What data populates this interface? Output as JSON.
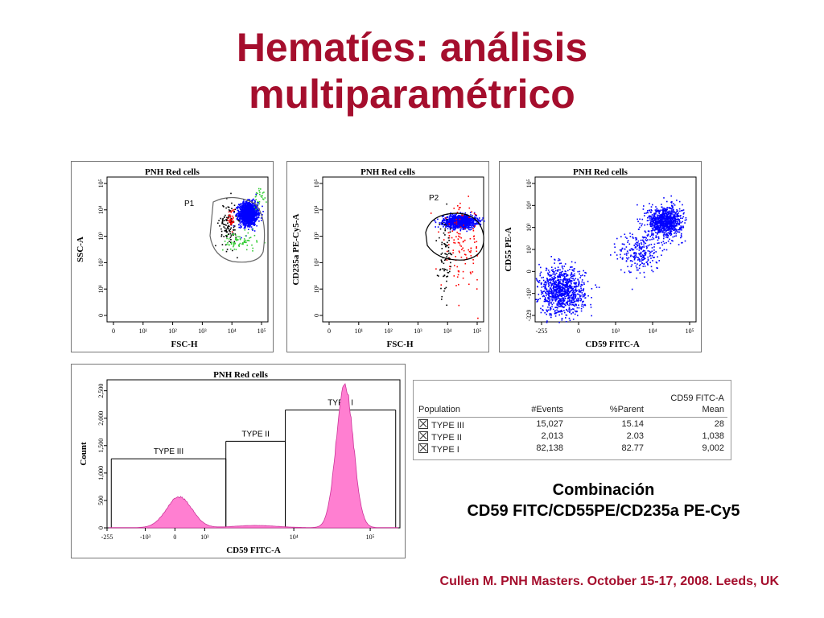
{
  "slide": {
    "title_line1": "Hematíes: análisis",
    "title_line2": "multiparamétrico",
    "combination_line1": "Combinación",
    "combination_line2": "CD59 FITC/CD55PE/CD235a PE-Cy5",
    "citation": "Cullen M.  PNH Masters. October 15-17, 2008. Leeds, UK"
  },
  "colors": {
    "title": "#a50e2d",
    "gated_events": "#0000ff",
    "histogram_fill": "#ff7fd1",
    "ungated_red": "#ff0000",
    "ungated_green": "#33cc33",
    "ungated_black": "#000000"
  },
  "stats_table": {
    "header_group": "CD59 FITC-A",
    "columns": [
      "Population",
      "#Events",
      "%Parent",
      "Mean"
    ],
    "rows": [
      {
        "population": "TYPE III",
        "events": "15,027",
        "parent": "15.14",
        "mean": "28"
      },
      {
        "population": "TYPE II",
        "events": "2,013",
        "parent": "2.03",
        "mean": "1,038"
      },
      {
        "population": "TYPE I",
        "events": "82,138",
        "parent": "82.77",
        "mean": "9,002"
      }
    ]
  },
  "chart_data": [
    {
      "type": "scatter",
      "title": "PNH Red cells",
      "xlabel": "FSC-H",
      "ylabel": "SSC-A",
      "x_ticks": [
        "0",
        "10¹",
        "10²",
        "10³",
        "10⁴",
        "10⁵"
      ],
      "y_ticks": [
        "0",
        "10¹",
        "10²",
        "10³",
        "10⁴",
        "10⁵"
      ],
      "gate": "P1",
      "clusters": [
        {
          "color": "#0000ff",
          "cx": 4.6,
          "cy": 3.9,
          "sx": 0.16,
          "sy": 0.22,
          "n": 1400
        },
        {
          "color": "#000000",
          "cx": 3.9,
          "cy": 3.5,
          "sx": 0.15,
          "sy": 0.45,
          "n": 120
        },
        {
          "color": "#33cc33",
          "cx": 4.3,
          "cy": 2.8,
          "sx": 0.3,
          "sy": 0.2,
          "n": 70
        },
        {
          "color": "#33cc33",
          "cx": 5.0,
          "cy": 4.6,
          "sx": 0.12,
          "sy": 0.2,
          "n": 25
        },
        {
          "color": "#ff0000",
          "cx": 4.0,
          "cy": 3.7,
          "sx": 0.06,
          "sy": 0.2,
          "n": 30
        }
      ]
    },
    {
      "type": "scatter",
      "title": "PNH Red cells",
      "xlabel": "FSC-H",
      "ylabel": "CD235a PE-Cy5-A",
      "x_ticks": [
        "0",
        "10¹",
        "10²",
        "10³",
        "10⁴",
        "10⁵"
      ],
      "y_ticks": [
        "0",
        "10¹",
        "10²",
        "10³",
        "10⁴",
        "10⁵"
      ],
      "gate": "P2",
      "clusters": [
        {
          "color": "#0000ff",
          "cx": 4.45,
          "cy": 3.6,
          "sx": 0.28,
          "sy": 0.12,
          "n": 1200
        },
        {
          "color": "#ff0000",
          "cx": 4.5,
          "cy": 2.6,
          "sx": 0.35,
          "sy": 0.8,
          "n": 120
        },
        {
          "color": "#000000",
          "cx": 3.95,
          "cy": 2.2,
          "sx": 0.12,
          "sy": 0.7,
          "n": 80
        }
      ]
    },
    {
      "type": "scatter",
      "title": "PNH Red cells",
      "xlabel": "CD59 FITC-A",
      "ylabel": "CD55 PE-A",
      "x_ticks": [
        "-255",
        "0",
        "10³",
        "10⁴",
        "10⁵"
      ],
      "y_ticks": [
        "-329",
        "-10³",
        "0",
        "10²",
        "10³",
        "10⁴",
        "10⁵"
      ],
      "clusters": [
        {
          "color": "#0000ff",
          "cx": 0.6,
          "cy": 0.9,
          "sx": 0.4,
          "sy": 0.45,
          "n": 1000
        },
        {
          "color": "#0000ff",
          "cx": 4.2,
          "cy": 3.6,
          "sx": 0.3,
          "sy": 0.3,
          "n": 900
        },
        {
          "color": "#0000ff",
          "cx": 3.3,
          "cy": 2.4,
          "sx": 0.35,
          "sy": 0.4,
          "n": 250
        }
      ]
    },
    {
      "type": "area",
      "title": "PNH Red cells",
      "xlabel": "CD59 FITC-A",
      "ylabel": "Count",
      "x_ticks": [
        "-255",
        "-10³",
        "0",
        "10³",
        "10⁴",
        "10⁵"
      ],
      "y_ticks": [
        "0",
        "500",
        "1,000",
        "1,500",
        "2,000",
        "2,500"
      ],
      "ylim": [
        0,
        2700
      ],
      "peaks": [
        {
          "center": 0.1,
          "width": 0.3,
          "height": 560
        },
        {
          "center": 1.9,
          "width": 0.5,
          "height": 40
        },
        {
          "center": 4.0,
          "width": 0.2,
          "height": 2620
        }
      ],
      "gates": [
        {
          "label": "TYPE III",
          "x_from": -1.5,
          "x_to": 1.2,
          "level": 1260
        },
        {
          "label": "TYPE II",
          "x_from": 1.2,
          "x_to": 2.6,
          "level": 1580
        },
        {
          "label": "TYPE I",
          "x_from": 2.6,
          "x_to": 5.2,
          "level": 2150
        }
      ]
    }
  ]
}
